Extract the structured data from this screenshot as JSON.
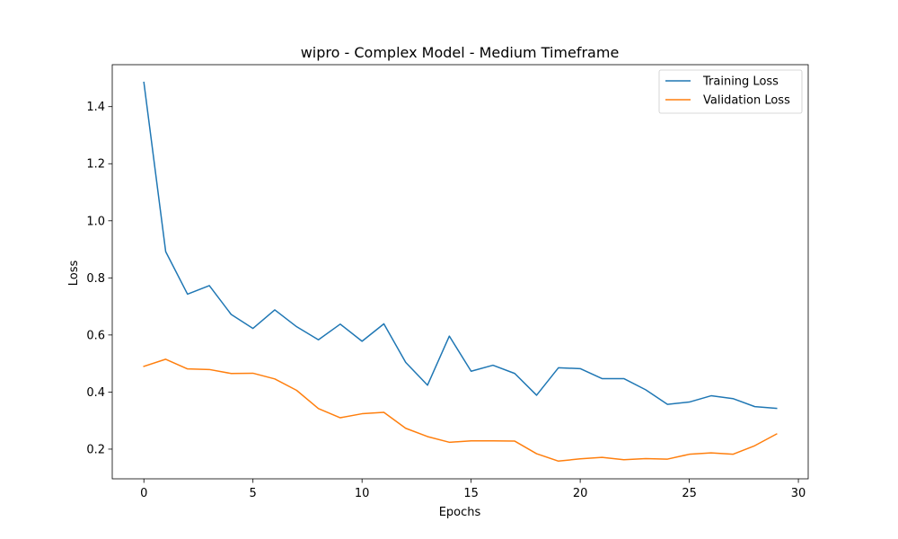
{
  "chart_data": {
    "type": "line",
    "title": "wipro - Complex Model - Medium Timeframe",
    "xlabel": "Epochs",
    "ylabel": "Loss",
    "xlim": [
      -1.45,
      30.45
    ],
    "ylim": [
      0.096,
      1.547
    ],
    "xticks": [
      0,
      5,
      10,
      15,
      20,
      25,
      30
    ],
    "xtick_labels": [
      "0",
      "5",
      "10",
      "15",
      "20",
      "25",
      "30"
    ],
    "yticks": [
      0.2,
      0.4,
      0.6,
      0.8,
      1.0,
      1.2,
      1.4
    ],
    "ytick_labels": [
      "0.2",
      "0.4",
      "0.6",
      "0.8",
      "1.0",
      "1.2",
      "1.4"
    ],
    "grid": false,
    "legend_position": "upper right",
    "x": [
      0,
      1,
      2,
      3,
      4,
      5,
      6,
      7,
      8,
      9,
      10,
      11,
      12,
      13,
      14,
      15,
      16,
      17,
      18,
      19,
      20,
      21,
      22,
      23,
      24,
      25,
      26,
      27,
      28,
      29
    ],
    "series": [
      {
        "name": "Training Loss",
        "color": "#1f77b4",
        "values": [
          1.485,
          0.892,
          0.743,
          0.773,
          0.672,
          0.623,
          0.688,
          0.629,
          0.583,
          0.638,
          0.578,
          0.639,
          0.504,
          0.424,
          0.596,
          0.473,
          0.494,
          0.465,
          0.389,
          0.485,
          0.482,
          0.447,
          0.447,
          0.408,
          0.357,
          0.365,
          0.387,
          0.377,
          0.349,
          0.343
        ]
      },
      {
        "name": "Validation Loss",
        "color": "#ff7f0e",
        "values": [
          0.49,
          0.515,
          0.481,
          0.479,
          0.465,
          0.466,
          0.446,
          0.406,
          0.342,
          0.31,
          0.324,
          0.329,
          0.273,
          0.244,
          0.224,
          0.229,
          0.229,
          0.228,
          0.184,
          0.158,
          0.166,
          0.171,
          0.163,
          0.167,
          0.165,
          0.182,
          0.187,
          0.182,
          0.212,
          0.253
        ]
      }
    ]
  }
}
